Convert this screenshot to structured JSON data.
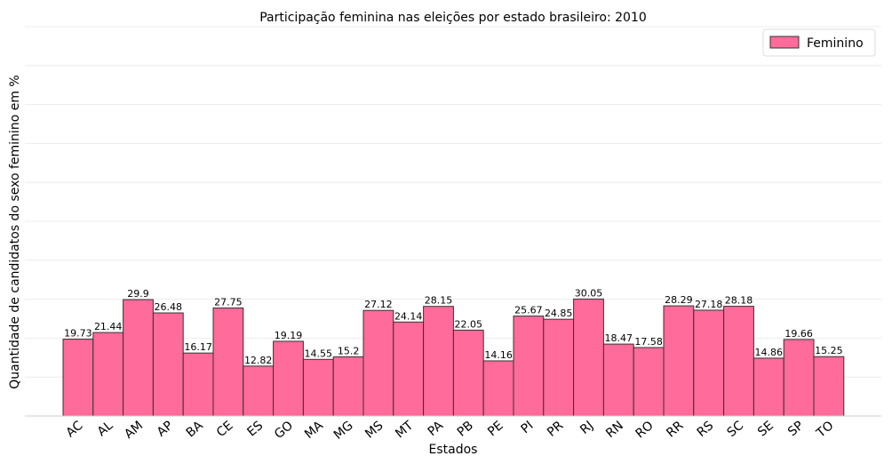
{
  "chart_data": {
    "type": "bar",
    "title": "Participação feminina nas eleições por estado brasileiro: 2010",
    "xlabel": "Estados",
    "ylabel": "Quantidade de candidatos do sexo feminino em %",
    "categories": [
      "AC",
      "AL",
      "AM",
      "AP",
      "BA",
      "CE",
      "ES",
      "GO",
      "MA",
      "MG",
      "MS",
      "MT",
      "PA",
      "PB",
      "PE",
      "PI",
      "PR",
      "RJ",
      "RN",
      "RO",
      "RR",
      "RS",
      "SC",
      "SE",
      "SP",
      "TO"
    ],
    "series": [
      {
        "name": "Feminino",
        "color": "#ff6b9a",
        "values": [
          19.73,
          21.44,
          29.9,
          26.48,
          16.17,
          27.75,
          12.82,
          19.19,
          14.55,
          15.2,
          27.12,
          24.14,
          28.15,
          22.05,
          14.16,
          25.67,
          24.85,
          30.05,
          18.47,
          17.58,
          28.29,
          27.18,
          28.18,
          14.86,
          19.66,
          15.25
        ]
      }
    ],
    "data_labels": [
      "19.73",
      "21.44",
      "29.9",
      "26.48",
      "16.17",
      "27.75",
      "12.82",
      "19.19",
      "14.55",
      "15.2",
      "27.12",
      "24.14",
      "28.15",
      "22.05",
      "14.16",
      "25.67",
      "24.85",
      "30.05",
      "18.47",
      "17.58",
      "28.29",
      "27.18",
      "28.18",
      "14.86",
      "19.66",
      "15.25"
    ],
    "ylim": [
      0,
      100
    ],
    "grid": true,
    "legend_position": "top-right",
    "bar_edge_color": "#333333"
  }
}
